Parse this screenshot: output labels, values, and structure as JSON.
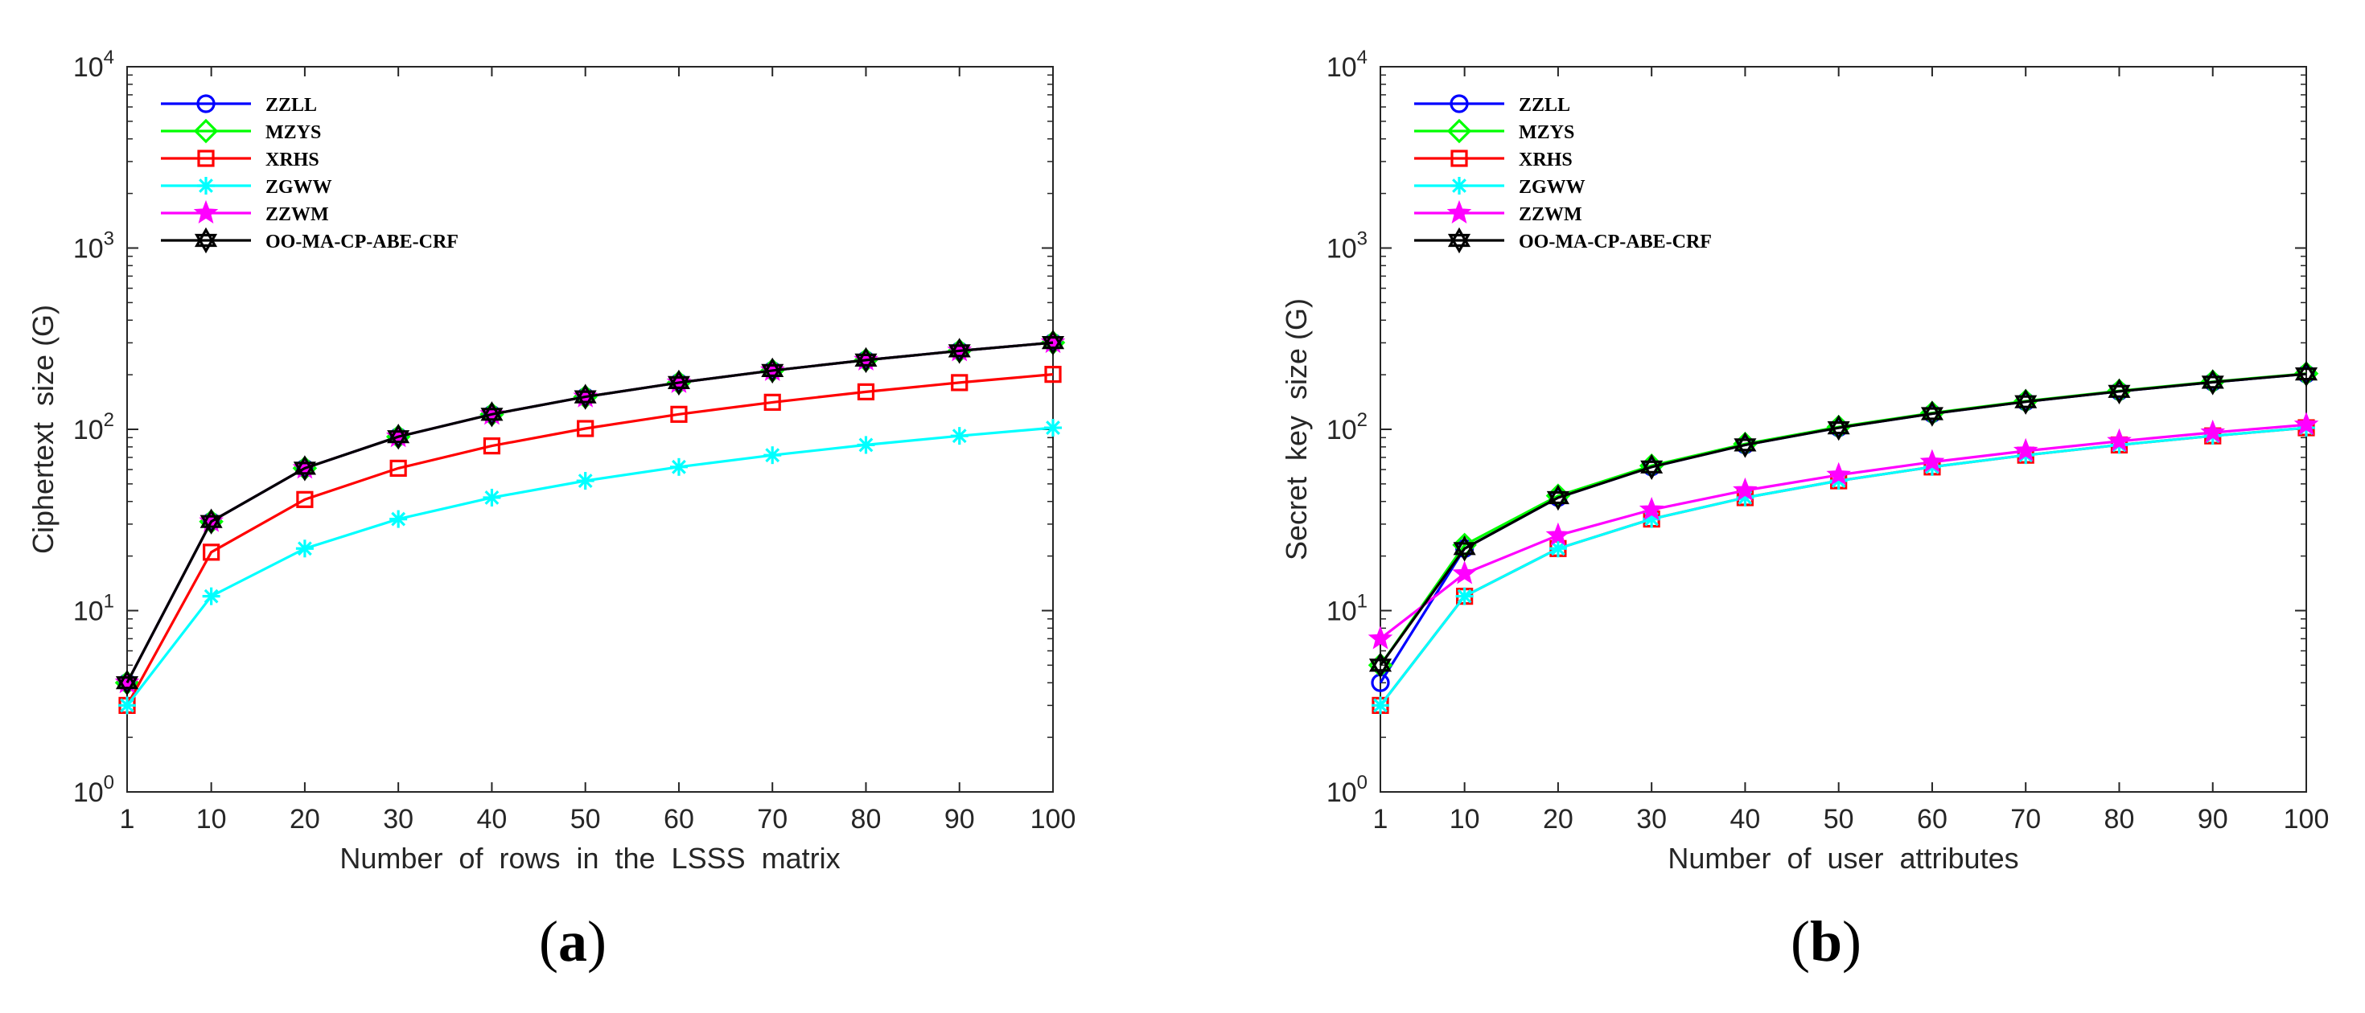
{
  "colors": {
    "ZZLL": "#0000ff",
    "MZYS": "#00ff00",
    "XRHS": "#ff0000",
    "ZGWW": "#00ffff",
    "ZZWM": "#ff00ff",
    "OO-MA-CP-ABE-CRF": "#000000"
  },
  "chart_data": [
    {
      "type": "line",
      "panel_label": "(a)",
      "title": "",
      "xlabel": "Number  of  rows  in  the  LSSS  matrix",
      "ylabel": "Ciphertext  size (G)",
      "yscale": "log",
      "ylim": [
        1,
        10000
      ],
      "x": [
        1,
        10,
        20,
        30,
        40,
        50,
        60,
        70,
        80,
        90,
        100
      ],
      "xticks": [
        "1",
        "10",
        "20",
        "30",
        "40",
        "50",
        "60",
        "70",
        "80",
        "90",
        "100"
      ],
      "yticks": [
        {
          "base": "10",
          "exp": "0"
        },
        {
          "base": "10",
          "exp": "1"
        },
        {
          "base": "10",
          "exp": "2"
        },
        {
          "base": "10",
          "exp": "3"
        },
        {
          "base": "10",
          "exp": "4"
        }
      ],
      "legend_position": "top-left",
      "series": [
        {
          "name": "ZZLL",
          "marker": "circle",
          "values": [
            4,
            31,
            61,
            91,
            121,
            151,
            181,
            211,
            241,
            271,
            301
          ]
        },
        {
          "name": "MZYS",
          "marker": "diamond",
          "values": [
            4,
            31,
            61,
            91,
            121,
            151,
            181,
            211,
            241,
            271,
            301
          ]
        },
        {
          "name": "XRHS",
          "marker": "square",
          "values": [
            3,
            21,
            41,
            61,
            81,
            101,
            121,
            141,
            161,
            181,
            201
          ]
        },
        {
          "name": "ZGWW",
          "marker": "asterisk",
          "values": [
            3,
            12,
            22,
            32,
            42,
            52,
            62,
            72,
            82,
            92,
            102
          ]
        },
        {
          "name": "ZZWM",
          "marker": "star",
          "values": [
            4,
            31,
            61,
            91,
            121,
            151,
            181,
            211,
            241,
            271,
            301
          ]
        },
        {
          "name": "OO-MA-CP-ABE-CRF",
          "marker": "hexagram",
          "values": [
            4,
            31,
            61,
            91,
            121,
            151,
            181,
            211,
            241,
            271,
            301
          ]
        }
      ]
    },
    {
      "type": "line",
      "panel_label": "(b)",
      "title": "",
      "xlabel": "Number  of  user  attributes",
      "ylabel": "Secret  key  size (G)",
      "yscale": "log",
      "ylim": [
        1,
        10000
      ],
      "x": [
        1,
        10,
        20,
        30,
        40,
        50,
        60,
        70,
        80,
        90,
        100
      ],
      "xticks": [
        "1",
        "10",
        "20",
        "30",
        "40",
        "50",
        "60",
        "70",
        "80",
        "90",
        "100"
      ],
      "yticks": [
        {
          "base": "10",
          "exp": "0"
        },
        {
          "base": "10",
          "exp": "1"
        },
        {
          "base": "10",
          "exp": "2"
        },
        {
          "base": "10",
          "exp": "3"
        },
        {
          "base": "10",
          "exp": "4"
        }
      ],
      "legend_position": "top-left",
      "series": [
        {
          "name": "ZZLL",
          "marker": "circle",
          "values": [
            4,
            22,
            42,
            62,
            82,
            102,
            122,
            142,
            162,
            182,
            202
          ]
        },
        {
          "name": "MZYS",
          "marker": "diamond",
          "values": [
            5,
            23,
            43,
            63,
            83,
            103,
            123,
            143,
            163,
            183,
            203
          ]
        },
        {
          "name": "XRHS",
          "marker": "square",
          "values": [
            3,
            12,
            22,
            32,
            42,
            52,
            62,
            72,
            82,
            92,
            102
          ]
        },
        {
          "name": "ZGWW",
          "marker": "asterisk",
          "values": [
            3,
            12,
            22,
            32,
            42,
            52,
            62,
            72,
            82,
            92,
            102
          ]
        },
        {
          "name": "ZZWM",
          "marker": "star",
          "values": [
            7,
            16,
            26,
            36,
            46,
            56,
            66,
            76,
            86,
            96,
            106
          ]
        },
        {
          "name": "OO-MA-CP-ABE-CRF",
          "marker": "hexagram",
          "values": [
            5,
            22,
            42,
            62,
            82,
            102,
            122,
            142,
            162,
            182,
            202
          ]
        }
      ]
    }
  ]
}
